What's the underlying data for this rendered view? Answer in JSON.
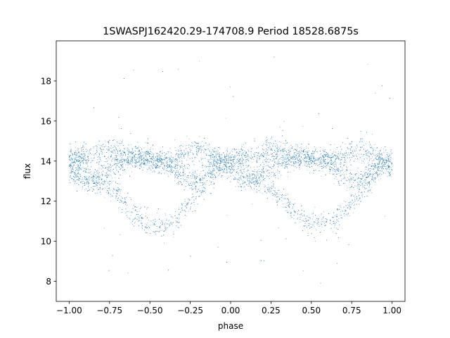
{
  "chart_data": {
    "type": "scatter",
    "title": "1SWASPJ162420.29-174708.9 Period 18528.6875s",
    "xlabel": "phase",
    "ylabel": "flux",
    "xlim": [
      -1.08,
      1.08
    ],
    "ylim": [
      7.0,
      20.0
    ],
    "xticks": [
      -1.0,
      -0.75,
      -0.5,
      -0.25,
      0.0,
      0.25,
      0.5,
      0.75,
      1.0
    ],
    "xtick_labels": [
      "−1.00",
      "−0.75",
      "−0.50",
      "−0.25",
      "0.00",
      "0.25",
      "0.50",
      "0.75",
      "1.00"
    ],
    "yticks": [
      8,
      10,
      12,
      14,
      16,
      18
    ],
    "ytick_labels": [
      "8",
      "10",
      "12",
      "14",
      "16",
      "18"
    ],
    "grid": false,
    "legend": "none",
    "marker_color": "#1f77b4",
    "series": [
      {
        "phase_range": [
          -1.0,
          1.0
        ],
        "period_in_phase": 1.0,
        "trace_a": {
          "phase": [
            -1.0,
            -0.95,
            -0.9,
            -0.85,
            -0.8,
            -0.75,
            -0.7,
            -0.65,
            -0.6,
            -0.55,
            -0.5,
            -0.45,
            -0.4,
            -0.35,
            -0.3,
            -0.25,
            -0.2,
            -0.15,
            -0.1,
            -0.05,
            0.0
          ],
          "flux": [
            14.0,
            14.1,
            14.2,
            14.3,
            14.4,
            14.6,
            14.5,
            14.4,
            14.3,
            14.2,
            14.1,
            14.0,
            13.9,
            13.6,
            13.3,
            13.0,
            13.1,
            13.3,
            13.6,
            13.9,
            14.0
          ]
        },
        "trace_b": {
          "phase": [
            -1.0,
            -0.95,
            -0.9,
            -0.85,
            -0.8,
            -0.75,
            -0.7,
            -0.65,
            -0.6,
            -0.55,
            -0.5,
            -0.45,
            -0.4,
            -0.35,
            -0.3,
            -0.25,
            -0.2,
            -0.15,
            -0.1,
            -0.05,
            0.0
          ],
          "flux": [
            13.5,
            13.2,
            13.0,
            13.1,
            13.3,
            13.6,
            13.9,
            14.0,
            14.1,
            14.2,
            14.1,
            14.0,
            14.0,
            14.1,
            14.3,
            14.5,
            14.6,
            14.5,
            14.3,
            14.0,
            13.5
          ]
        },
        "trace_c": {
          "phase": [
            -0.9,
            -0.85,
            -0.8,
            -0.75,
            -0.7,
            -0.65,
            -0.6,
            -0.55,
            -0.5,
            -0.45,
            -0.4,
            -0.35,
            -0.3,
            -0.25,
            -0.2,
            -0.15,
            -0.1
          ],
          "flux": [
            13.4,
            13.1,
            12.8,
            12.6,
            12.3,
            11.9,
            11.4,
            11.0,
            10.8,
            10.8,
            10.8,
            11.0,
            11.4,
            11.9,
            12.4,
            12.9,
            13.3
          ]
        },
        "scatter_spread": 0.3,
        "outlier_range": [
          7.7,
          19.3
        ]
      }
    ]
  }
}
